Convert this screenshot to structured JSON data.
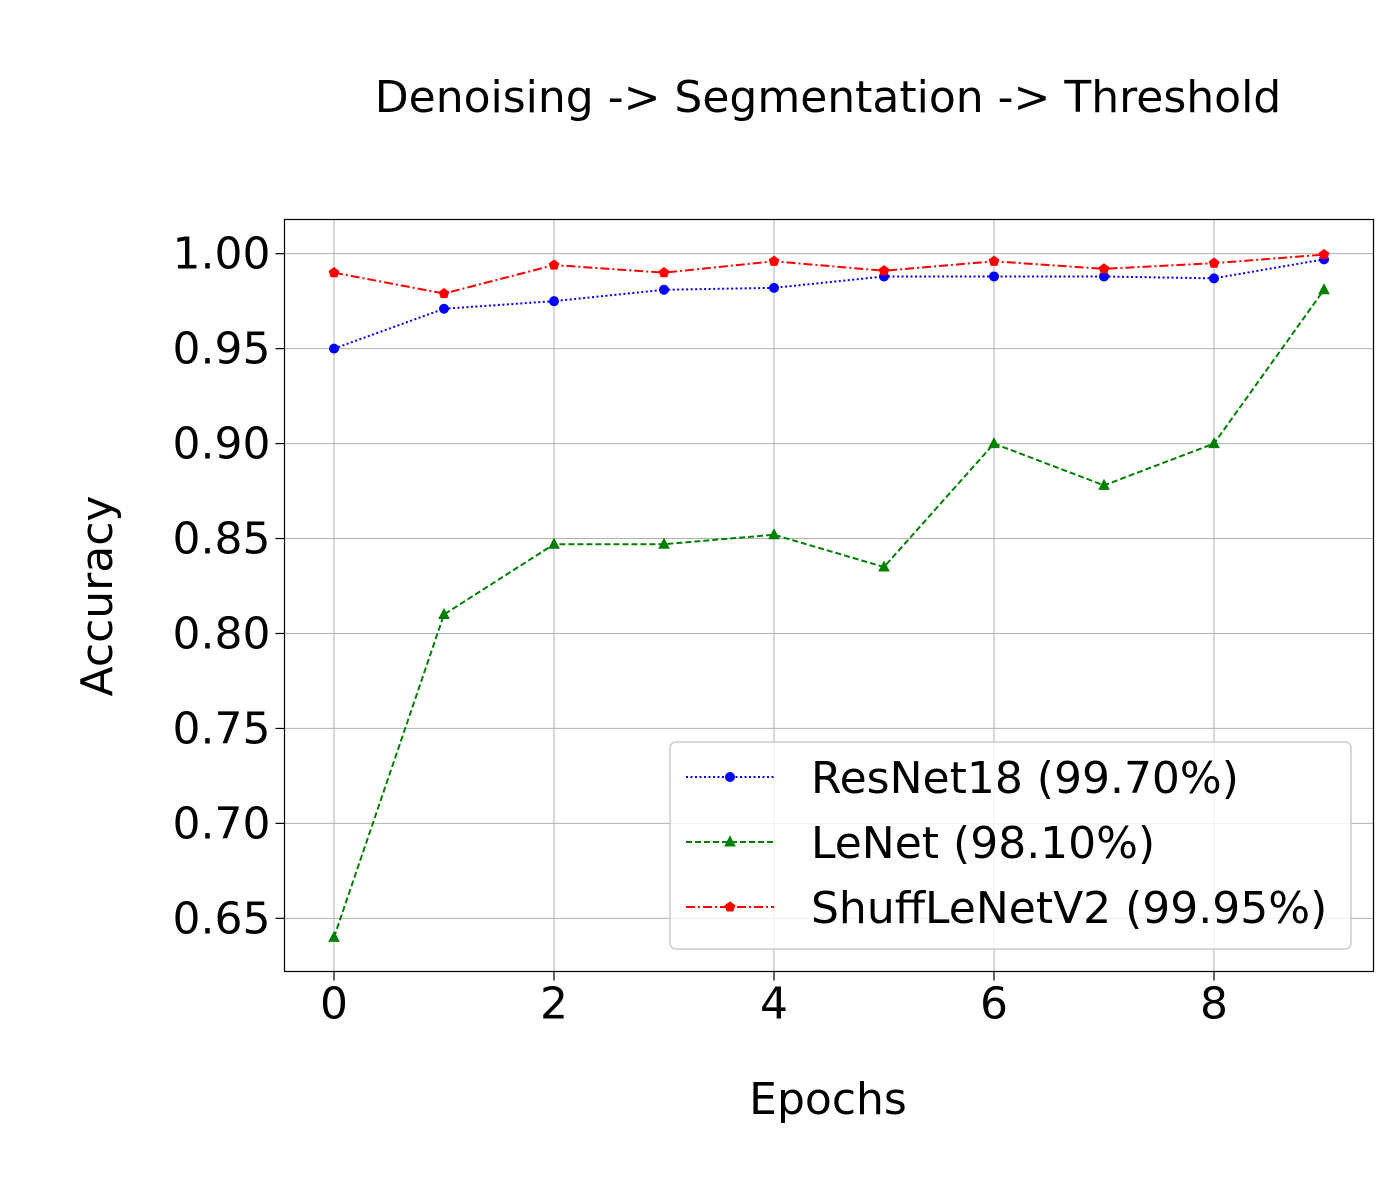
{
  "chart_data": {
    "type": "line",
    "title": "Denoising -> Segmentation -> Threshold",
    "xlabel": "Epochs",
    "ylabel": "Accuracy",
    "xlim": [
      -0.45,
      9.45
    ],
    "ylim": [
      0.622,
      1.018
    ],
    "xticks": [
      0,
      2,
      4,
      6,
      8
    ],
    "yticks": [
      0.65,
      0.7,
      0.75,
      0.8,
      0.85,
      0.9,
      0.95,
      1.0
    ],
    "xtick_labels": [
      "0",
      "2",
      "4",
      "6",
      "8"
    ],
    "ytick_labels": [
      "0.65",
      "0.70",
      "0.75",
      "0.80",
      "0.85",
      "0.90",
      "0.95",
      "1.00"
    ],
    "grid": true,
    "legend_position": "lower-right",
    "x": [
      0,
      1,
      2,
      3,
      4,
      5,
      6,
      7,
      8,
      9
    ],
    "series": [
      {
        "name": "ResNet18 (99.70%)",
        "color": "#0000ff",
        "linestyle": "dotted",
        "marker": "circle",
        "values": [
          0.95,
          0.971,
          0.975,
          0.981,
          0.982,
          0.988,
          0.988,
          0.988,
          0.987,
          0.997
        ]
      },
      {
        "name": "LeNet (98.10%)",
        "color": "#008000",
        "linestyle": "dashed",
        "marker": "triangle",
        "values": [
          0.64,
          0.81,
          0.847,
          0.847,
          0.852,
          0.835,
          0.9,
          0.878,
          0.9,
          0.981
        ]
      },
      {
        "name": "ShuffLeNetV2 (99.95%)",
        "color": "#ff0000",
        "linestyle": "dashdot",
        "marker": "pentagon",
        "values": [
          0.99,
          0.979,
          0.994,
          0.99,
          0.996,
          0.991,
          0.996,
          0.992,
          0.995,
          0.9995
        ]
      }
    ]
  }
}
